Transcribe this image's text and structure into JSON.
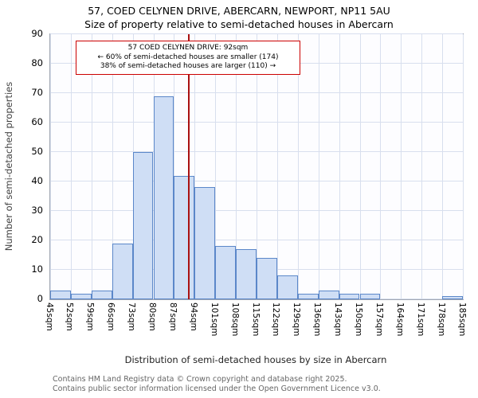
{
  "footer": {
    "line1": "Contains HM Land Registry data © Crown copyright and database right 2025.",
    "line2": "Contains public sector information licensed under the Open Government Licence v3.0."
  },
  "chart_data": {
    "type": "bar",
    "title": "57, COED CELYNEN DRIVE, ABERCARN, NEWPORT, NP11 5AU",
    "subtitle": "Size of property relative to semi-detached houses in Abercarn",
    "xlabel": "Distribution of semi-detached houses by size in Abercarn",
    "ylabel": "Number of semi-detached properties",
    "xlim": [
      45,
      185
    ],
    "ylim": [
      0,
      90
    ],
    "yticks": [
      0,
      10,
      20,
      30,
      40,
      50,
      60,
      70,
      80,
      90
    ],
    "bin_width_sqm": 7,
    "bin_edge_labels": [
      "45sqm",
      "52sqm",
      "59sqm",
      "66sqm",
      "73sqm",
      "80sqm",
      "87sqm",
      "94sqm",
      "101sqm",
      "108sqm",
      "115sqm",
      "122sqm",
      "129sqm",
      "136sqm",
      "143sqm",
      "150sqm",
      "157sqm",
      "164sqm",
      "171sqm",
      "178sqm",
      "185sqm"
    ],
    "values": [
      3,
      2,
      3,
      19,
      50,
      69,
      42,
      38,
      18,
      17,
      14,
      8,
      2,
      3,
      2,
      2,
      0,
      0,
      0,
      1
    ],
    "marker": {
      "value": 92,
      "label": "92sqm"
    },
    "annotation": {
      "line1": "57 COED CELYNEN DRIVE: 92sqm",
      "line2": "← 60% of semi-detached houses are smaller (174)",
      "line3": "38% of semi-detached houses are larger (110) →"
    },
    "grid": true,
    "legend": false,
    "colors": {
      "bar_fill": "#cfdef5",
      "bar_edge": "#5b87c9",
      "marker_line": "#aa1111",
      "grid": "#d8dfee",
      "annotation_border": "#cc0000"
    }
  }
}
